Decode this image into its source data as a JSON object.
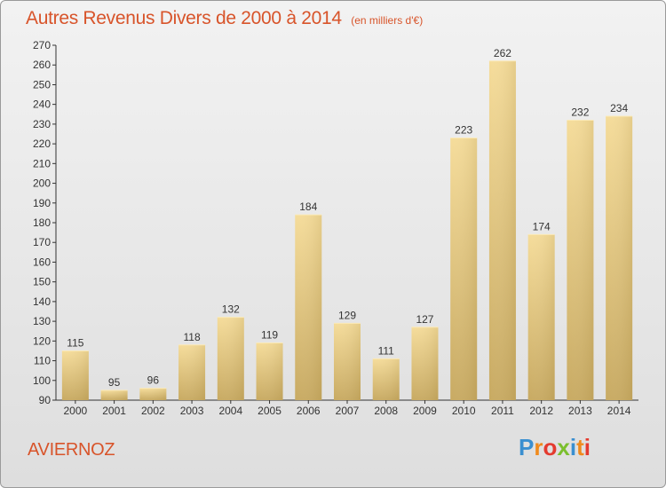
{
  "chart_data": {
    "type": "bar",
    "title": "Autres Revenus Divers de 2000 à 2014",
    "subtitle": "(en milliers d'€)",
    "categories": [
      "2000",
      "2001",
      "2002",
      "2003",
      "2004",
      "2005",
      "2006",
      "2007",
      "2008",
      "2009",
      "2010",
      "2011",
      "2012",
      "2013",
      "2014"
    ],
    "values": [
      115,
      95,
      96,
      118,
      132,
      119,
      184,
      129,
      111,
      127,
      223,
      262,
      174,
      232,
      234
    ],
    "ylim": [
      90,
      270
    ],
    "ytick_step": 10,
    "grid": false,
    "data_labels": true,
    "bar_color": "#e8cf86"
  },
  "footer": {
    "commune": "AVIERNOZ",
    "logo_letters": [
      "P",
      "r",
      "o",
      "x",
      "i",
      "t",
      "i"
    ],
    "logo_colors": [
      "#3a8fd0",
      "#f08a1c",
      "#e43b2f",
      "#7bbf2e",
      "#3a8fd0",
      "#f08a1c",
      "#e43b2f"
    ]
  },
  "colors": {
    "title": "#d8542a",
    "axis": "#333333",
    "text": "#333333"
  }
}
